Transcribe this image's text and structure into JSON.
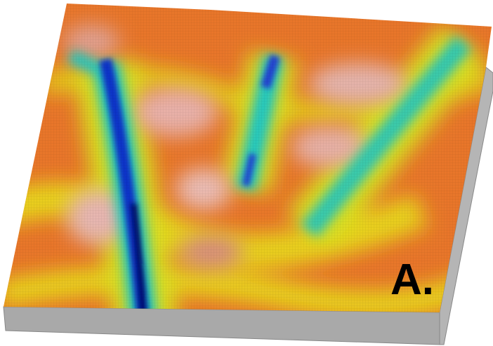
{
  "label": "A."
}
